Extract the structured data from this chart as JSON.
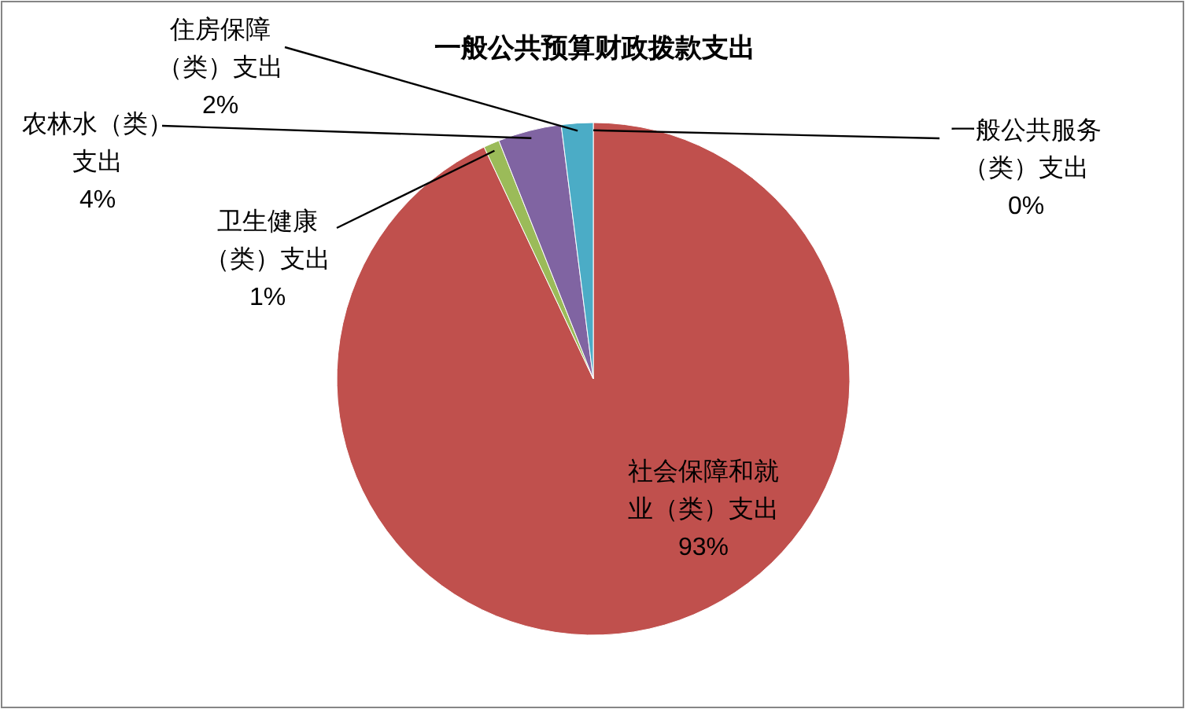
{
  "chart_data": {
    "type": "pie",
    "title": "一般公共预算财政拨款支出",
    "categories": [
      "一般公共服务（类）支出",
      "社会保障和就业（类）支出",
      "卫生健康（类）支出",
      "农林水（类）支出",
      "住房保障（类）支出"
    ],
    "values": [
      0,
      93,
      1,
      4,
      2
    ],
    "colors": [
      "#4f81bd",
      "#c0504d",
      "#9bbb59",
      "#8064a2",
      "#4bacc6"
    ],
    "value_labels": [
      "0%",
      "93%",
      "1%",
      "4%",
      "2%"
    ]
  }
}
